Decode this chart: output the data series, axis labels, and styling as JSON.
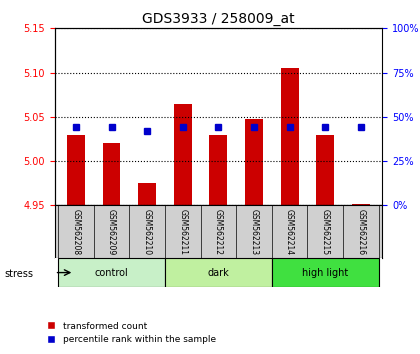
{
  "title": "GDS3933 / 258009_at",
  "samples": [
    "GSM562208",
    "GSM562209",
    "GSM562210",
    "GSM562211",
    "GSM562212",
    "GSM562213",
    "GSM562214",
    "GSM562215",
    "GSM562216"
  ],
  "red_values": [
    5.03,
    5.02,
    4.975,
    5.065,
    5.03,
    5.047,
    5.105,
    5.03,
    4.952
  ],
  "blue_values": [
    0.44,
    0.44,
    0.42,
    0.44,
    0.44,
    0.44,
    0.44,
    0.44,
    0.44
  ],
  "ylim_left": [
    4.95,
    5.15
  ],
  "ylim_right": [
    0,
    100
  ],
  "yticks_left": [
    4.95,
    5.0,
    5.05,
    5.1,
    5.15
  ],
  "yticks_right": [
    0,
    25,
    50,
    75,
    100
  ],
  "groups": [
    {
      "label": "control",
      "indices": [
        0,
        1,
        2
      ],
      "color": "#c8f0c8"
    },
    {
      "label": "dark",
      "indices": [
        3,
        4,
        5
      ],
      "color": "#c0f0a0"
    },
    {
      "label": "high light",
      "indices": [
        6,
        7,
        8
      ],
      "color": "#40e040"
    }
  ],
  "stress_label": "stress",
  "bar_color_red": "#cc0000",
  "bar_color_blue": "#0000cc",
  "bar_width": 0.5,
  "grid_color": "#000000",
  "bg_color": "#ffffff",
  "tick_area_color": "#d0d0d0",
  "legend_red": "transformed count",
  "legend_blue": "percentile rank within the sample"
}
